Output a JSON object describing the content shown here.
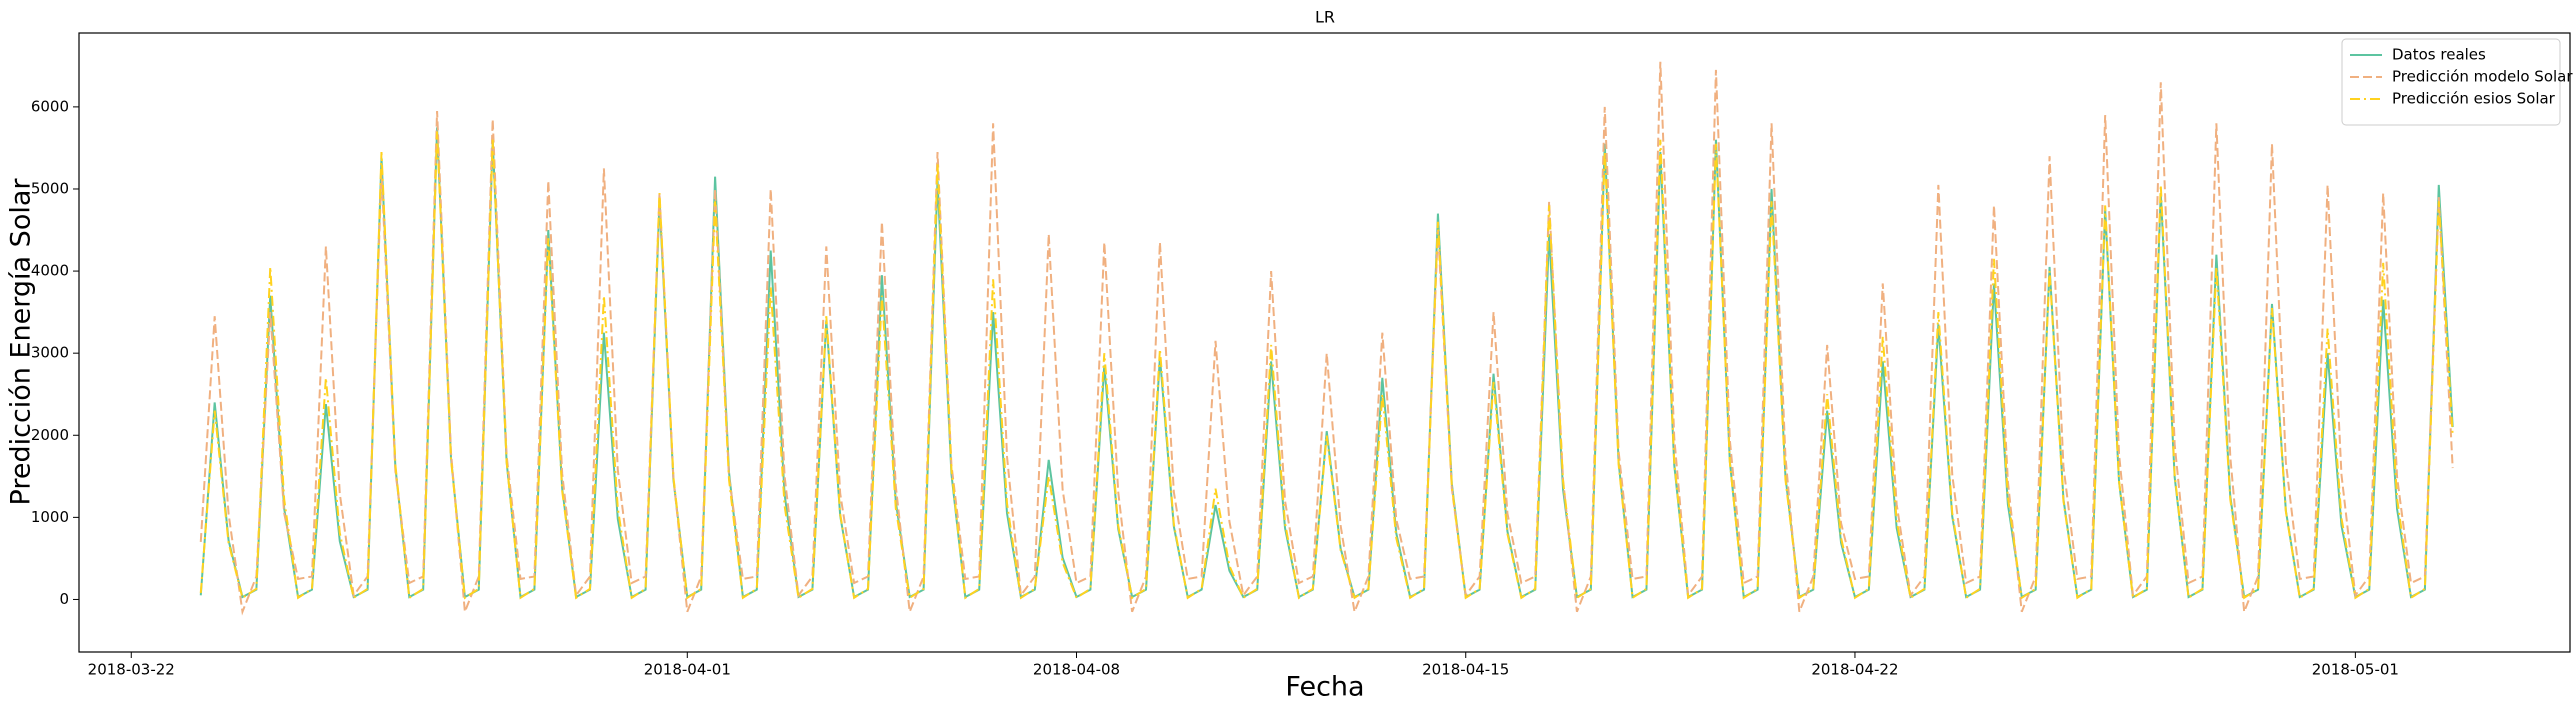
{
  "chart_data": {
    "type": "line",
    "title": "LR",
    "xlabel": "Fecha",
    "ylabel": "Predicción Energía Solar",
    "xlim": [
      17611.06,
      17655.86
    ],
    "ylim": [
      -640,
      6900
    ],
    "xticks": [
      {
        "value": 17612,
        "label": "2018-03-22"
      },
      {
        "value": 17622,
        "label": "2018-04-01"
      },
      {
        "value": 17629,
        "label": "2018-04-08"
      },
      {
        "value": 17636,
        "label": "2018-04-15"
      },
      {
        "value": 17643,
        "label": "2018-04-22"
      },
      {
        "value": 17652,
        "label": "2018-05-01"
      }
    ],
    "yticks": [
      0,
      1000,
      2000,
      3000,
      4000,
      5000,
      6000
    ],
    "legend": "upper right",
    "x": [
      17613.25,
      17613.5,
      17613.75,
      17614,
      17614.25,
      17614.5,
      17614.75,
      17615,
      17615.25,
      17615.5,
      17615.75,
      17616,
      17616.25,
      17616.5,
      17616.75,
      17617,
      17617.25,
      17617.5,
      17617.75,
      17618,
      17618.25,
      17618.5,
      17618.75,
      17619,
      17619.25,
      17619.5,
      17619.75,
      17620,
      17620.25,
      17620.5,
      17620.75,
      17621,
      17621.25,
      17621.5,
      17621.75,
      17622,
      17622.25,
      17622.5,
      17622.75,
      17623,
      17623.25,
      17623.5,
      17623.75,
      17624,
      17624.25,
      17624.5,
      17624.75,
      17625,
      17625.25,
      17625.5,
      17625.75,
      17626,
      17626.25,
      17626.5,
      17626.75,
      17627,
      17627.25,
      17627.5,
      17627.75,
      17628,
      17628.25,
      17628.5,
      17628.75,
      17629,
      17629.25,
      17629.5,
      17629.75,
      17630,
      17630.25,
      17630.5,
      17630.75,
      17631,
      17631.25,
      17631.5,
      17631.75,
      17632,
      17632.25,
      17632.5,
      17632.75,
      17633,
      17633.25,
      17633.5,
      17633.75,
      17634,
      17634.25,
      17634.5,
      17634.75,
      17635,
      17635.25,
      17635.5,
      17635.75,
      17636,
      17636.25,
      17636.5,
      17636.75,
      17637,
      17637.25,
      17637.5,
      17637.75,
      17638,
      17638.25,
      17638.5,
      17638.75,
      17639,
      17639.25,
      17639.5,
      17639.75,
      17640,
      17640.25,
      17640.5,
      17640.75,
      17641,
      17641.25,
      17641.5,
      17641.75,
      17642,
      17642.25,
      17642.5,
      17642.75,
      17643,
      17643.25,
      17643.5,
      17643.75,
      17644,
      17644.25,
      17644.5,
      17644.75,
      17645,
      17645.25,
      17645.5,
      17645.75,
      17646,
      17646.25,
      17646.5,
      17646.75,
      17647,
      17647.25,
      17647.5,
      17647.75,
      17648,
      17648.25,
      17648.5,
      17648.75,
      17649,
      17649.25,
      17649.5,
      17649.75,
      17650,
      17650.25,
      17650.5,
      17650.75,
      17651,
      17651.25,
      17651.5,
      17651.75,
      17652,
      17652.25,
      17652.5,
      17652.75,
      17653,
      17653.25,
      17653.5,
      17653.75
    ],
    "series": [
      {
        "name": "Datos reales",
        "color": "#5cc4a0",
        "linestyle": "solid",
        "values": [
          50,
          2400,
          720,
          30,
          120,
          3700,
          1110,
          30,
          120,
          2380,
          710,
          30,
          120,
          5380,
          1610,
          30,
          120,
          5750,
          1730,
          30,
          120,
          5600,
          1680,
          30,
          120,
          4500,
          1350,
          30,
          120,
          3250,
          980,
          30,
          120,
          4850,
          1460,
          30,
          120,
          5150,
          1550,
          30,
          120,
          4250,
          1280,
          30,
          120,
          3400,
          1020,
          30,
          120,
          3950,
          1190,
          30,
          120,
          5100,
          1530,
          30,
          120,
          3500,
          1050,
          30,
          120,
          1700,
          510,
          30,
          120,
          2850,
          860,
          30,
          120,
          2950,
          890,
          30,
          120,
          1150,
          350,
          30,
          120,
          2900,
          870,
          30,
          120,
          2050,
          620,
          30,
          120,
          2700,
          810,
          30,
          120,
          4700,
          1410,
          30,
          120,
          2750,
          830,
          30,
          120,
          4450,
          1340,
          30,
          120,
          5550,
          1670,
          30,
          120,
          5450,
          1640,
          30,
          120,
          5600,
          1680,
          30,
          120,
          5000,
          1500,
          30,
          120,
          2300,
          690,
          30,
          120,
          2900,
          870,
          30,
          120,
          3350,
          1010,
          30,
          120,
          3850,
          1160,
          30,
          120,
          4050,
          1220,
          30,
          120,
          4750,
          1430,
          30,
          120,
          4950,
          1490,
          30,
          120,
          4200,
          1260,
          30,
          120,
          3600,
          1080,
          30,
          120,
          3000,
          900,
          30,
          120,
          3650,
          1100,
          30,
          120,
          5050,
          2100
        ]
      },
      {
        "name": "Predicción modelo Solar",
        "color": "#f0b080",
        "linestyle": "dashed",
        "values": [
          700,
          3450,
          1040,
          -150,
          280,
          3500,
          1050,
          250,
          280,
          4300,
          1290,
          50,
          280,
          5200,
          1560,
          200,
          280,
          5950,
          1790,
          -150,
          280,
          5850,
          1760,
          250,
          280,
          5100,
          1530,
          50,
          280,
          5250,
          1580,
          200,
          280,
          4950,
          1490,
          -150,
          280,
          5000,
          1500,
          250,
          280,
          5000,
          1500,
          50,
          280,
          4300,
          1290,
          200,
          280,
          4600,
          1380,
          -150,
          280,
          5450,
          1640,
          250,
          280,
          5800,
          1740,
          50,
          280,
          4450,
          1340,
          200,
          280,
          4350,
          1310,
          -150,
          280,
          4350,
          1310,
          250,
          280,
          3150,
          950,
          50,
          280,
          4000,
          1200,
          200,
          280,
          3000,
          900,
          -150,
          280,
          3250,
          980,
          250,
          280,
          4500,
          1350,
          50,
          280,
          3500,
          1050,
          200,
          280,
          4850,
          1460,
          -150,
          280,
          6000,
          1800,
          250,
          280,
          6550,
          1970,
          50,
          280,
          6450,
          1940,
          200,
          280,
          5800,
          1740,
          -150,
          280,
          3100,
          930,
          250,
          280,
          3850,
          1160,
          50,
          280,
          5050,
          1520,
          200,
          280,
          4800,
          1440,
          -150,
          280,
          5400,
          1620,
          250,
          280,
          5900,
          1770,
          50,
          280,
          6300,
          1890,
          200,
          280,
          5800,
          1740,
          -150,
          280,
          5550,
          1670,
          250,
          280,
          5050,
          1520,
          50,
          280,
          4950,
          1490,
          200,
          280,
          4900,
          1600
        ]
      },
      {
        "name": "Predicción esios Solar",
        "color": "#ffd21f",
        "linestyle": "dashdot",
        "values": [
          80,
          2300,
          690,
          20,
          130,
          4050,
          1220,
          20,
          130,
          2700,
          810,
          20,
          130,
          5450,
          1640,
          20,
          130,
          5700,
          1710,
          20,
          130,
          5600,
          1680,
          20,
          130,
          4400,
          1320,
          20,
          130,
          3700,
          1110,
          20,
          130,
          4950,
          1490,
          20,
          130,
          4850,
          1460,
          20,
          130,
          3800,
          1140,
          20,
          130,
          3450,
          1040,
          20,
          130,
          3700,
          1110,
          20,
          130,
          5300,
          1590,
          20,
          130,
          3900,
          1170,
          20,
          130,
          1500,
          450,
          20,
          130,
          3000,
          900,
          20,
          130,
          3050,
          920,
          20,
          130,
          1350,
          410,
          20,
          130,
          3100,
          930,
          20,
          130,
          2000,
          600,
          20,
          130,
          2500,
          750,
          20,
          130,
          4600,
          1380,
          20,
          130,
          2650,
          800,
          20,
          130,
          4800,
          1440,
          20,
          130,
          5450,
          1640,
          20,
          130,
          5600,
          1680,
          20,
          130,
          5550,
          1670,
          20,
          130,
          4850,
          1460,
          20,
          130,
          2500,
          750,
          20,
          130,
          3200,
          960,
          20,
          130,
          3500,
          1050,
          20,
          130,
          4150,
          1250,
          20,
          130,
          4000,
          1200,
          20,
          130,
          4800,
          1440,
          20,
          130,
          5050,
          1520,
          20,
          130,
          4050,
          1220,
          20,
          130,
          3550,
          1070,
          20,
          130,
          3300,
          990,
          20,
          130,
          4100,
          1230,
          20,
          130,
          4850,
          2000
        ]
      }
    ]
  }
}
